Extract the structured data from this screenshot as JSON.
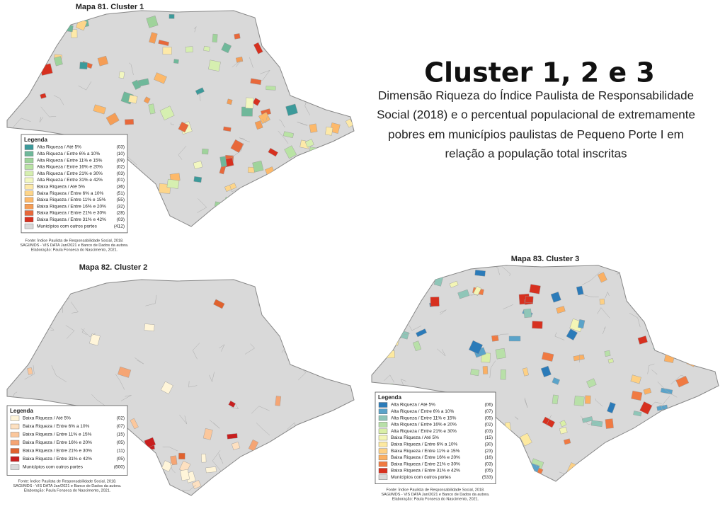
{
  "header": {
    "title": "Cluster 1, 2 e 3",
    "lines": [
      "Dimensão Riqueza do Índice Paulista de Responsabilidade",
      "Social (2018) e o percentual populacional de extremamente",
      "pobres em municípios paulistas de Pequeno Porte I em",
      "relação a população total inscritas"
    ]
  },
  "maps": [
    {
      "title": "Mapa 81. Cluster 1",
      "legend_title": "Legenda",
      "legend": [
        {
          "label": "Alta Riqueza / Até 5%",
          "count": "(03)",
          "color": "#3c9a9a"
        },
        {
          "label": "Alta Riqueza / Entre 6% a 10%",
          "count": "(10)",
          "color": "#6fb89a"
        },
        {
          "label": "Alta Riqueza / Entre 11% e 15%",
          "count": "(09)",
          "color": "#9fd39b"
        },
        {
          "label": "Alta Riqueza / Entre 16% e 20%",
          "count": "(02)",
          "color": "#b9e3a4"
        },
        {
          "label": "Alta Riqueza / Entre 21% e 30%",
          "count": "(03)",
          "color": "#d6efb0"
        },
        {
          "label": "Alta Riqueza / Entre 31% e 42%",
          "count": "(01)",
          "color": "#f2f7c0"
        },
        {
          "label": "Baixa Riqueza / Até 5%",
          "count": "(36)",
          "color": "#fde9a8"
        },
        {
          "label": "Baixa Riqueza / Entre 6% a 10%",
          "count": "(51)",
          "color": "#fdd58a"
        },
        {
          "label": "Baixa Riqueza / Entre 11% e 15%",
          "count": "(55)",
          "color": "#fdb96a"
        },
        {
          "label": "Baixa Riqueza / Entre 16% e 20%",
          "count": "(32)",
          "color": "#f59d55"
        },
        {
          "label": "Baixa Riqueza / Entre 21% e 30%",
          "count": "(28)",
          "color": "#e8683a"
        },
        {
          "label": "Baixa Riqueza / Entre 31% e 42%",
          "count": "(03)",
          "color": "#d7301f"
        },
        {
          "label": "Municípios com outros portes",
          "count": "(412)",
          "color": "#d9d9d9"
        }
      ],
      "source": [
        "Fonte: Índice Paulista de Responsabilidade Social, 2018.",
        "SAGI/MDS - VIS DATA Jan/2021 e Banco de Dados da autora.",
        "Elaboração: Paula Fonseca do Nascimento, 2021."
      ]
    },
    {
      "title": "Mapa 82. Cluster 2",
      "legend_title": "Legenda",
      "legend": [
        {
          "label": "Baixa Riqueza / Até 5%",
          "count": "(02)",
          "color": "#fff5d9"
        },
        {
          "label": "Baixa Riqueza / Entre 6% a 10%",
          "count": "(07)",
          "color": "#fde0c0"
        },
        {
          "label": "Baixa Riqueza / Entre 11% e 15%",
          "count": "(15)",
          "color": "#fbc79c"
        },
        {
          "label": "Baixa Riqueza / Entre 16% e 20%",
          "count": "(05)",
          "color": "#f5a574"
        },
        {
          "label": "Baixa Riqueza / Entre 21% e 30%",
          "count": "(11)",
          "color": "#e0622e"
        },
        {
          "label": "Baixa Riqueza / Entre 31% e 42%",
          "count": "(05)",
          "color": "#c81e1e"
        },
        {
          "label": "Municípios com outros portes",
          "count": "(600)",
          "color": "#d9d9d9"
        }
      ],
      "source": [
        "Fonte: Índice Paulista de Responsabilidade Social, 2018.",
        "SAGI/MDS - VIS DATA Jan/2021 e Banco de Dados da autora.",
        "Elaboração: Paula Fonseca do Nascimento, 2021."
      ]
    },
    {
      "title": "Mapa 83. Cluster 3",
      "legend_title": "Legenda",
      "legend": [
        {
          "label": "Alta Riqueza / Até 5%",
          "count": "(06)",
          "color": "#2b7bb9"
        },
        {
          "label": "Alta Riqueza / Entre 6% a 10%",
          "count": "(07)",
          "color": "#5aa3c9"
        },
        {
          "label": "Alta Riqueza / Entre 11% e 15%",
          "count": "(05)",
          "color": "#8fc6b8"
        },
        {
          "label": "Alta Riqueza / Entre 16% e 20%",
          "count": "(02)",
          "color": "#b8e0a8"
        },
        {
          "label": "Alta Riqueza / Entre 21% e 30%",
          "count": "(03)",
          "color": "#d9efa6"
        },
        {
          "label": "Baixa Riqueza / Até 5%",
          "count": "(15)",
          "color": "#f3f5b5"
        },
        {
          "label": "Baixa Riqueza / Entre 6% a 10%",
          "count": "(30)",
          "color": "#fde9a0"
        },
        {
          "label": "Baixa Riqueza / Entre 11% e 15%",
          "count": "(23)",
          "color": "#fdd084"
        },
        {
          "label": "Baixa Riqueza / Entre 16% e 20%",
          "count": "(16)",
          "color": "#fbb063"
        },
        {
          "label": "Baixa Riqueza / Entre 21% e 30%",
          "count": "(03)",
          "color": "#f07a42"
        },
        {
          "label": "Baixa Riqueza / Entre 31% e 42%",
          "count": "(05)",
          "color": "#d7301f"
        },
        {
          "label": "Municípios com outros portes",
          "count": "(533)",
          "color": "#d9d9d9"
        }
      ],
      "source": [
        "Fonte: Índice Paulista de Responsabilidade Social, 2018.",
        "SAGI/MDS - VIS DATA Jan/2021 e Banco de Dados da autora.",
        "Elaboração: Paula Fonseca do Nascimento, 2021."
      ]
    }
  ]
}
